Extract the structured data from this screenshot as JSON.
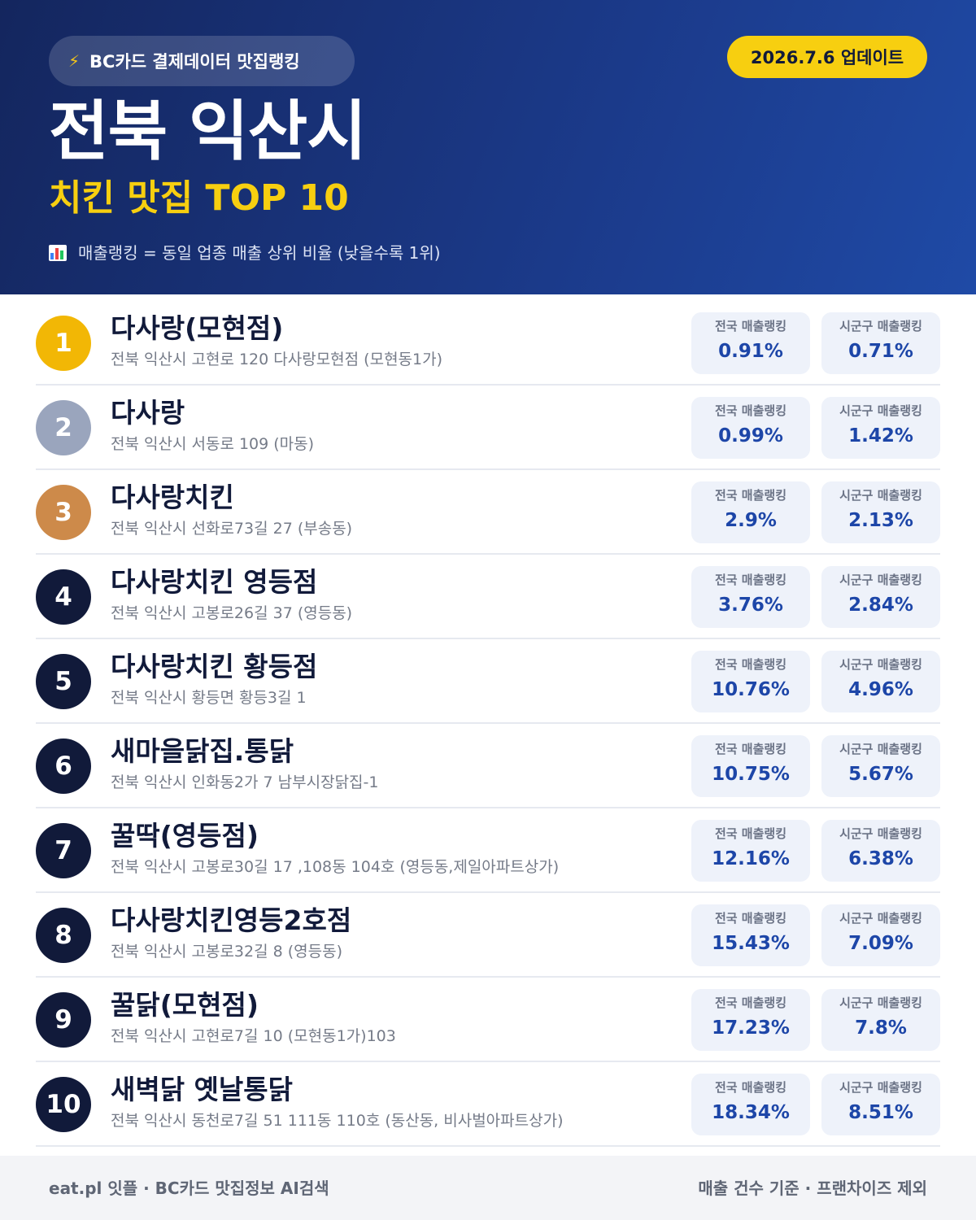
{
  "header": {
    "badge_icon": "lightning-icon",
    "badge_label": "BC카드 결제데이터 맛집랭킹",
    "update_label": "2026.7.6 업데이트",
    "title": "전북 익산시",
    "subtitle": "치킨 맛집 TOP 10",
    "note_icon": "bar-chart-icon",
    "note": "매출랭킹 = 동일 업종 매출 상위 비율 (낮을수록 1위)"
  },
  "colors": {
    "header_bg": "#1b3a8a",
    "accent_yellow": "#f7cf10",
    "gold": "#f2b705",
    "silver": "#9aa5bd",
    "bronze": "#cd8a4a",
    "navy": "#111a3a",
    "value_blue": "#1d46a8"
  },
  "metric_labels": {
    "national": "전국 매출랭킹",
    "district": "시군구 매출랭킹"
  },
  "restaurants": [
    {
      "rank": "1",
      "name": "다사랑(모현점)",
      "address": "전북 익산시 고현로 120 다사랑모현점 (모현동1가)",
      "national": "0.91%",
      "district": "0.71%"
    },
    {
      "rank": "2",
      "name": "다사랑",
      "address": "전북 익산시 서동로 109 (마동)",
      "national": "0.99%",
      "district": "1.42%"
    },
    {
      "rank": "3",
      "name": "다사랑치킨",
      "address": "전북 익산시 선화로73길 27 (부송동)",
      "national": "2.9%",
      "district": "2.13%"
    },
    {
      "rank": "4",
      "name": "다사랑치킨 영등점",
      "address": "전북 익산시 고봉로26길 37 (영등동)",
      "national": "3.76%",
      "district": "2.84%"
    },
    {
      "rank": "5",
      "name": "다사랑치킨 황등점",
      "address": "전북 익산시 황등면 황등3길 1",
      "national": "10.76%",
      "district": "4.96%"
    },
    {
      "rank": "6",
      "name": "새마을닭집.통닭",
      "address": "전북 익산시 인화동2가 7 남부시장닭집-1",
      "national": "10.75%",
      "district": "5.67%"
    },
    {
      "rank": "7",
      "name": "꿀딱(영등점)",
      "address": "전북 익산시 고봉로30길 17 ,108동 104호 (영등동,제일아파트상가)",
      "national": "12.16%",
      "district": "6.38%"
    },
    {
      "rank": "8",
      "name": "다사랑치킨영등2호점",
      "address": "전북 익산시 고봉로32길 8 (영등동)",
      "national": "15.43%",
      "district": "7.09%"
    },
    {
      "rank": "9",
      "name": "꿀닭(모현점)",
      "address": "전북 익산시 고현로7길 10 (모현동1가)103",
      "national": "17.23%",
      "district": "7.8%"
    },
    {
      "rank": "10",
      "name": "새벽닭 옛날통닭",
      "address": "전북 익산시 동천로7길 51 111동 110호 (동산동, 비사벌아파트상가)",
      "national": "18.34%",
      "district": "8.51%"
    }
  ],
  "footer": {
    "left": "eat.pl 잇플 · BC카드 맛집정보 AI검색",
    "right": "매출 건수 기준 · 프랜차이즈 제외"
  }
}
